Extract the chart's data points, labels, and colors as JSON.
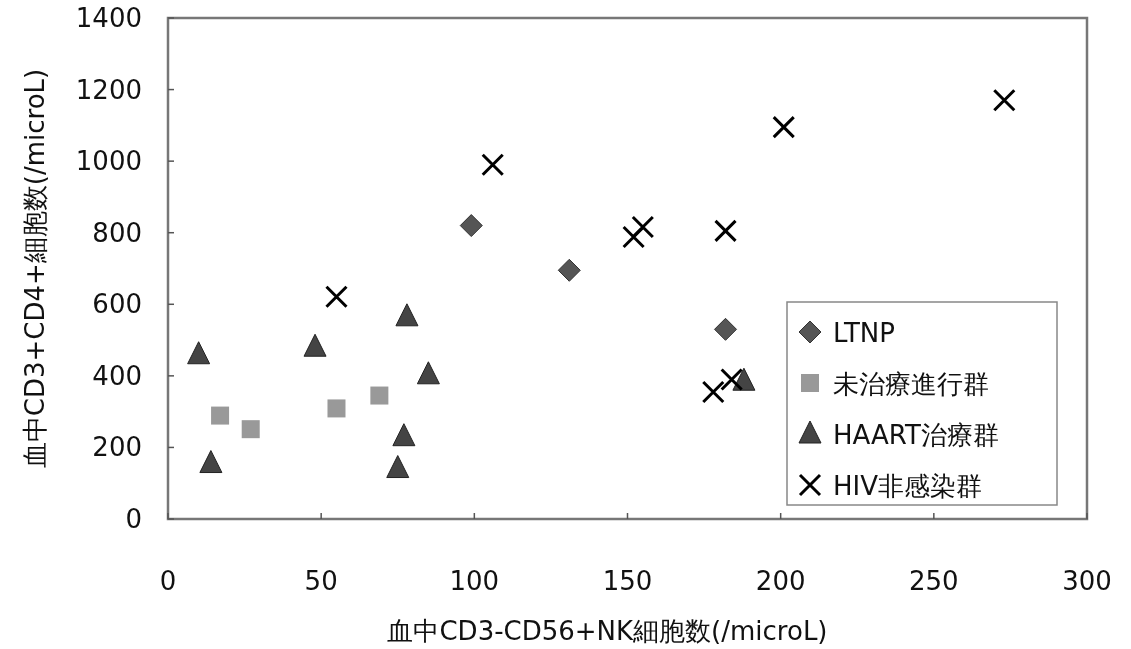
{
  "chart_data": {
    "type": "scatter",
    "xlabel": "血中CD3-CD56+NK細胞数(/microL)",
    "ylabel": "血中CD3+CD4+細胞数(/microL)",
    "xlim": [
      0,
      300
    ],
    "ylim": [
      0,
      1400
    ],
    "xticks": [
      0,
      50,
      100,
      150,
      200,
      250,
      300
    ],
    "yticks": [
      0,
      200,
      400,
      600,
      800,
      1000,
      1200,
      1400
    ],
    "legend": "bottom right",
    "grid": false,
    "series": [
      {
        "name": "LTNP",
        "color": "#555555",
        "marker": "diamond",
        "x": [
          99,
          131,
          182
        ],
        "values": [
          820,
          695,
          530
        ]
      },
      {
        "name": "未治療進行群",
        "color": "#999999",
        "marker": "square",
        "x": [
          17,
          27,
          55,
          69
        ],
        "values": [
          289,
          251,
          309,
          345
        ]
      },
      {
        "name": "HAART治療群",
        "color": "#444444",
        "marker": "triangle",
        "x": [
          10,
          14,
          48,
          75,
          77,
          78,
          85,
          188
        ],
        "values": [
          459,
          155,
          480,
          141,
          230,
          565,
          403,
          385
        ]
      },
      {
        "name": "HIV非感染群",
        "color": "#000000",
        "marker": "cross",
        "x": [
          55,
          106,
          152,
          155,
          178,
          184,
          182,
          201,
          273
        ],
        "values": [
          621,
          990,
          788,
          816,
          355,
          390,
          805,
          1095,
          1170
        ]
      }
    ]
  }
}
